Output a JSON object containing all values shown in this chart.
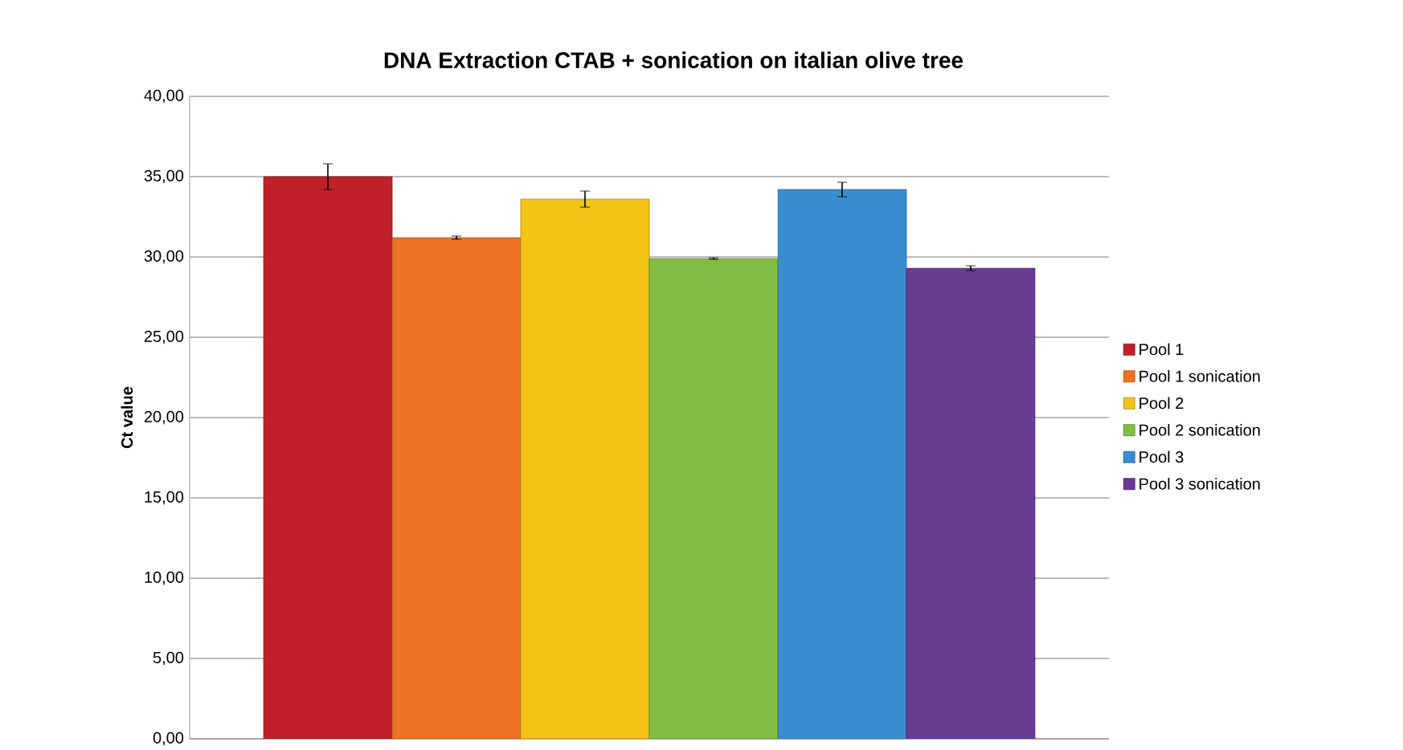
{
  "chart_data": {
    "type": "bar",
    "title": "DNA Extraction CTAB + sonication on italian olive tree",
    "ylabel": "Ct value",
    "categories": [
      null
    ],
    "series": [
      {
        "name": "Pool 1",
        "color": "#c0202a",
        "values": [
          35.0
        ],
        "errors": [
          0.8
        ]
      },
      {
        "name": "Pool 1 sonication",
        "color": "#ec7224",
        "values": [
          31.2
        ],
        "errors": [
          0.1
        ]
      },
      {
        "name": "Pool 2",
        "color": "#f2c418",
        "values": [
          33.6
        ],
        "errors": [
          0.5
        ]
      },
      {
        "name": "Pool 2 sonication",
        "color": "#82bd43",
        "values": [
          29.9
        ],
        "errors": [
          0.05
        ]
      },
      {
        "name": "Pool 3",
        "color": "#3a8ed0",
        "values": [
          34.2
        ],
        "errors": [
          0.45
        ]
      },
      {
        "name": "Pool 3 sonication",
        "color": "#6a3b93",
        "values": [
          29.3
        ],
        "errors": [
          0.15
        ]
      }
    ],
    "ylim": [
      0,
      40
    ],
    "yticks": [
      {
        "value": 0,
        "label": "0,00"
      },
      {
        "value": 5,
        "label": "5,00"
      },
      {
        "value": 10,
        "label": "10,00"
      },
      {
        "value": 15,
        "label": "15,00"
      },
      {
        "value": 20,
        "label": "20,00"
      },
      {
        "value": 25,
        "label": "25,00"
      },
      {
        "value": 30,
        "label": "30,00"
      },
      {
        "value": 35,
        "label": "35,00"
      },
      {
        "value": 40,
        "label": "40,00"
      }
    ],
    "grid": "y",
    "legend": "right"
  }
}
